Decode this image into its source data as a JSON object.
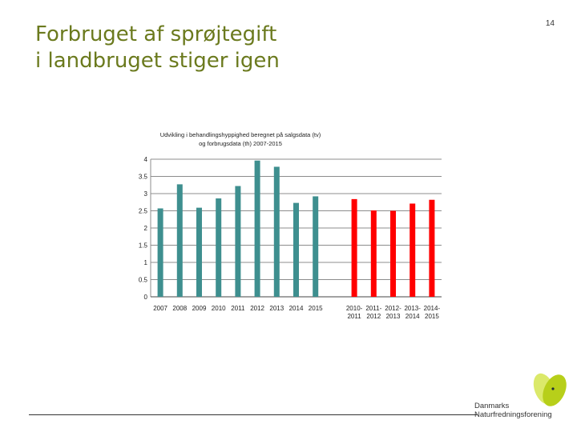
{
  "page": {
    "title_lines": [
      "Forbruget af sprøjtegift",
      "i landbruget stiger igen"
    ],
    "page_number": "14"
  },
  "logo": {
    "lines": [
      "Danmarks",
      "Naturfredningsforening"
    ]
  },
  "colors": {
    "title": "#6b7a1e",
    "sales_series": "#3e8f8f",
    "consumption_series": "#ff0000",
    "logo_green": "#b7cf1a",
    "logo_light": "#dbe96a"
  },
  "chart_data": {
    "type": "bar",
    "title_lines": [
      "Udvikling i behandlingshyppighed beregnet på salgsdata (tv)",
      "og forbrugsdata (th) 2007-2015"
    ],
    "ylim": [
      0,
      4
    ],
    "yticks": [
      0,
      0.5,
      1,
      1.5,
      2,
      2.5,
      3,
      3.5,
      4
    ],
    "ytick_labels": [
      "0",
      "0.5",
      "1",
      "1.5",
      "2",
      "2.5",
      "3",
      "3.5",
      "4"
    ],
    "grid": true,
    "legend": "none",
    "series": [
      {
        "categories": [
          "2007",
          "2008",
          "2009",
          "2010",
          "2011",
          "2012",
          "2013",
          "2014",
          "2015"
        ],
        "values": [
          2.57,
          3.27,
          2.59,
          2.86,
          3.22,
          3.96,
          3.78,
          2.73,
          2.92
        ]
      },
      {
        "categories": [
          [
            "2010-",
            "2011"
          ],
          [
            "2011-",
            "2012"
          ],
          [
            "2012-",
            "2013"
          ],
          [
            "2013-",
            "2014"
          ],
          [
            "2014-",
            "2015"
          ]
        ],
        "values": [
          2.84,
          2.51,
          2.5,
          2.71,
          2.82
        ]
      }
    ]
  }
}
